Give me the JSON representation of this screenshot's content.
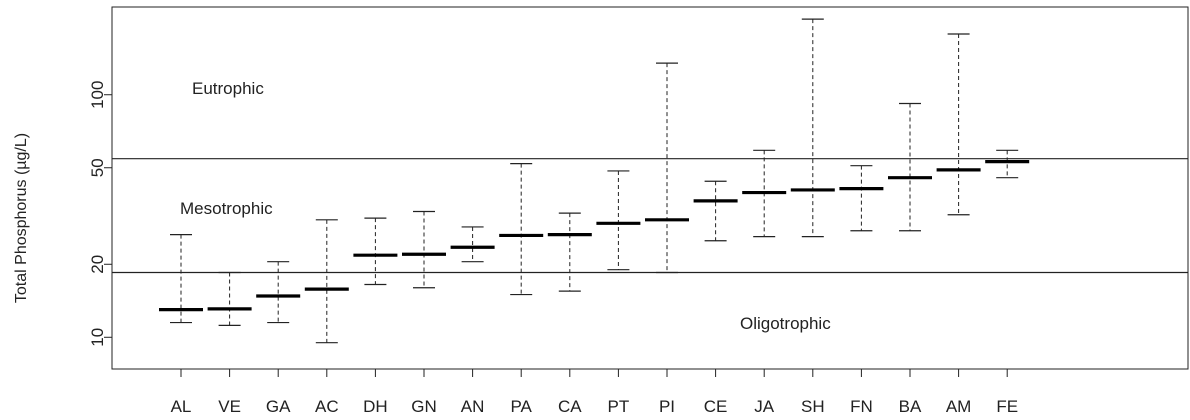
{
  "chart_data": {
    "type": "range_plot",
    "title": "",
    "xlabel": "",
    "ylabel": "Total Phosphorus (µg/L)",
    "yscale": "log",
    "ylim": [
      7.4,
      230
    ],
    "yticks": [
      10,
      20,
      50,
      100
    ],
    "categories": [
      "AL",
      "VE",
      "GA",
      "AC",
      "DH",
      "GN",
      "AN",
      "PA",
      "CA",
      "PT",
      "PI",
      "CE",
      "JA",
      "SH",
      "FN",
      "BA",
      "AM",
      "FE"
    ],
    "medians": [
      13,
      13.1,
      14.8,
      15.8,
      21.8,
      22,
      23.5,
      26.3,
      26.5,
      29.5,
      30.5,
      36.5,
      39.5,
      40.5,
      41,
      45.5,
      49,
      53
    ],
    "lows": [
      11.5,
      11.2,
      11.5,
      9.5,
      16.5,
      16,
      20.5,
      15,
      15.5,
      19,
      18.5,
      25,
      26,
      26,
      27.5,
      27.5,
      32,
      45.5
    ],
    "highs": [
      26.5,
      18.5,
      20.5,
      30.5,
      31,
      33,
      28.5,
      52,
      32.5,
      48.5,
      135,
      44,
      59,
      205,
      51,
      92,
      178,
      59
    ],
    "thresholds": [
      18.5,
      54.5
    ],
    "zones": [
      "Eutrophic",
      "Mesotrophic",
      "Oligotrophic"
    ],
    "grid": false,
    "legend": "none"
  }
}
